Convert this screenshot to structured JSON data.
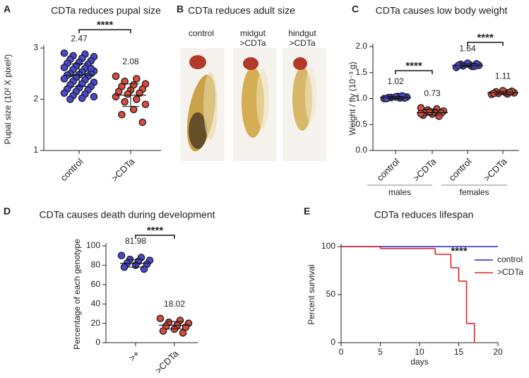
{
  "chart_data": [
    {
      "type": "strip",
      "panel": "A",
      "title": "CDTa reduces pupal size",
      "ylabel": "Pupal size (10² X pixel²)",
      "categories": [
        "control",
        ">CDTa"
      ],
      "ylim": [
        1,
        3
      ],
      "yticks": [
        1,
        2,
        3
      ],
      "annotations": [
        "****"
      ],
      "series": [
        {
          "color": "#4848d8",
          "mean": 2.47,
          "sd": 0.22,
          "values": [
            2.9,
            2.88,
            2.85,
            2.83,
            2.8,
            2.78,
            2.75,
            2.72,
            2.7,
            2.68,
            2.65,
            2.62,
            2.6,
            2.58,
            2.55,
            2.53,
            2.5,
            2.5,
            2.48,
            2.47,
            2.45,
            2.43,
            2.4,
            2.38,
            2.35,
            2.33,
            2.3,
            2.28,
            2.25,
            2.22,
            2.2,
            2.18,
            2.15,
            2.12,
            2.1,
            2.07,
            2.05,
            2.02,
            2.0,
            2.6
          ]
        },
        {
          "color": "#e04a3c",
          "mean": 2.08,
          "sd": 0.22,
          "values": [
            2.45,
            2.4,
            2.35,
            2.3,
            2.28,
            2.25,
            2.2,
            2.18,
            2.15,
            2.12,
            2.1,
            2.05,
            2.0,
            1.95,
            1.9,
            1.8,
            1.7,
            1.55
          ]
        }
      ]
    },
    {
      "type": "strip",
      "panel": "C",
      "title": "CDTa causes low body weight",
      "ylabel": "Weight / fly (10⁻³ g)",
      "categories": [
        "control",
        ">CDTa",
        "control",
        ">CDTa"
      ],
      "groups": [
        "males",
        "females"
      ],
      "ylim": [
        0,
        2
      ],
      "yticks": [
        {
          "value": 0,
          "label": "0.0"
        },
        0.5,
        {
          "value": 1,
          "label": "1.0"
        },
        1.5,
        {
          "value": 2,
          "label": "2.0"
        }
      ],
      "annotations": [
        "****",
        "****"
      ],
      "series": [
        {
          "color": "#4848d8",
          "mean": 1.02,
          "sd": 0.02,
          "values": [
            1.0,
            1.01,
            1.02,
            1.03,
            1.04,
            1.02,
            1.01,
            1.03,
            1.0,
            1.05
          ]
        },
        {
          "color": "#e04a3c",
          "mean": 0.73,
          "sd": 0.05,
          "values": [
            0.82,
            0.8,
            0.78,
            0.76,
            0.74,
            0.73,
            0.72,
            0.7,
            0.68,
            0.66,
            0.75,
            0.71
          ]
        },
        {
          "color": "#4848d8",
          "mean": 1.64,
          "sd": 0.03,
          "values": [
            1.6,
            1.62,
            1.63,
            1.64,
            1.65,
            1.66,
            1.67,
            1.68,
            1.64,
            1.62
          ]
        },
        {
          "color": "#e04a3c",
          "mean": 1.11,
          "sd": 0.03,
          "values": [
            1.08,
            1.09,
            1.1,
            1.11,
            1.12,
            1.13,
            1.14,
            1.15,
            1.1,
            1.12
          ]
        }
      ]
    },
    {
      "type": "strip",
      "panel": "D",
      "title": "CDTa causes death during development",
      "ylabel": "Percentage of each genotype",
      "categories": [
        ">+",
        ">CDTa"
      ],
      "ylim": [
        0,
        100
      ],
      "yticks": [
        0,
        20,
        40,
        60,
        80,
        100
      ],
      "annotations": [
        "****"
      ],
      "series": [
        {
          "color": "#4848d8",
          "mean": 81.98,
          "sd": 4,
          "values": [
            90,
            88,
            86,
            85,
            84,
            82,
            81,
            80,
            78,
            76
          ]
        },
        {
          "color": "#e04a3c",
          "mean": 18.02,
          "sd": 4,
          "values": [
            25,
            23,
            21,
            20,
            18,
            17,
            16,
            14,
            12,
            10
          ]
        }
      ]
    },
    {
      "type": "survival",
      "panel": "E",
      "title": "CDTa reduces lifespan",
      "xlabel": "days",
      "ylabel": "Percent survival",
      "xlim": [
        0,
        20
      ],
      "xticks": [
        0,
        5,
        10,
        15,
        20
      ],
      "ylim": [
        0,
        100
      ],
      "yticks": [
        0,
        50,
        100
      ],
      "annotations": [
        "****"
      ],
      "legend": "right",
      "series": [
        {
          "name": "control",
          "color": "#2020e0",
          "x": [
            0,
            20
          ],
          "values": [
            100,
            100
          ]
        },
        {
          "name": ">CDTa",
          "color": "#e02020",
          "x": [
            0,
            5,
            12,
            14,
            15,
            16,
            17
          ],
          "values": [
            100,
            98,
            92,
            78,
            64,
            20,
            0
          ]
        }
      ]
    }
  ],
  "panel_b": {
    "panel": "B",
    "title": "CDTa reduces adult size",
    "labels": [
      "control",
      "midgut",
      ">CDTa",
      "hindgut",
      ">CDTa"
    ]
  }
}
